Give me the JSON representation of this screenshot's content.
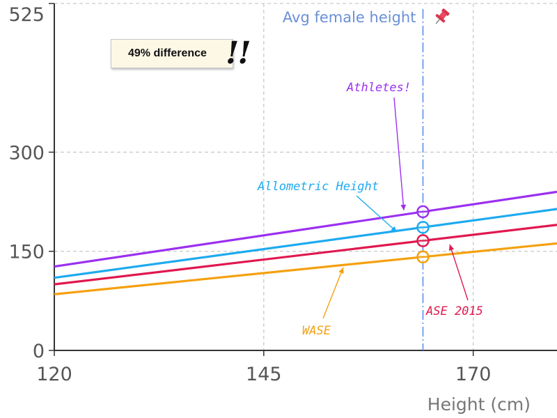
{
  "chart_data": {
    "type": "line",
    "xlabel": "Height (cm)",
    "ylabel": "",
    "xlim": [
      120,
      180
    ],
    "ylim": [
      0,
      525
    ],
    "x_ticks": [
      120,
      145,
      170
    ],
    "y_ticks": [
      0,
      150,
      300,
      525
    ],
    "grid": true,
    "x": [
      120,
      180
    ],
    "series": [
      {
        "name": "Athletes!",
        "color": "#9b30f0",
        "values": [
          127,
          240
        ]
      },
      {
        "name": "Allometric Height",
        "color": "#1eaaf0",
        "values": [
          110,
          214
        ]
      },
      {
        "name": "ASE 2015",
        "color": "#e0184f",
        "values": [
          100,
          190
        ]
      },
      {
        "name": "WASE",
        "color": "#f5a00f",
        "values": [
          85,
          162
        ]
      }
    ],
    "reference_line": {
      "label": "Avg female height",
      "x": 164,
      "color": "#5b8def"
    },
    "marker_x": 164,
    "callout": {
      "text": "49% difference",
      "marks": "!!"
    }
  }
}
